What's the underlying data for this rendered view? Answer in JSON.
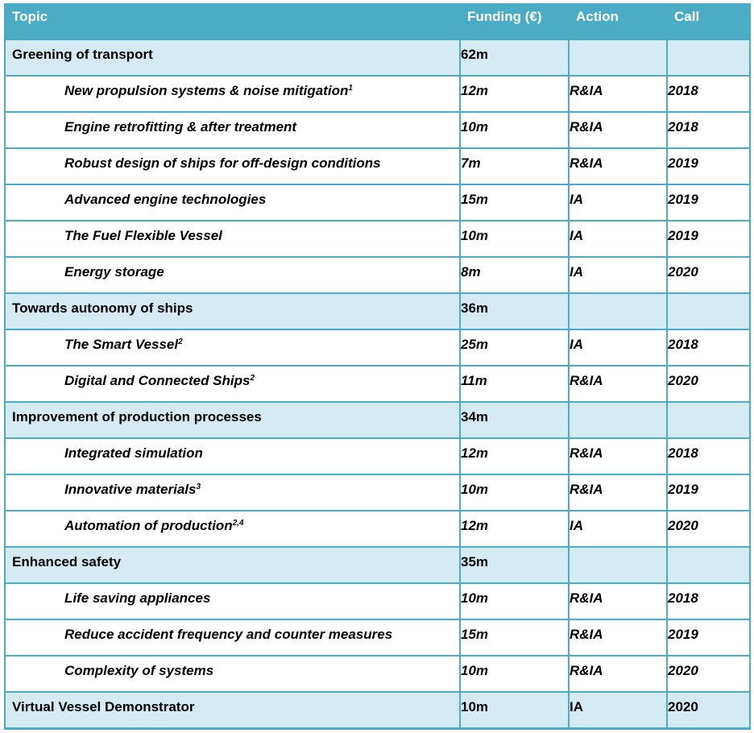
{
  "header": {
    "topic": "Topic",
    "funding": "Funding (€)",
    "action": "Action",
    "call": "Call"
  },
  "rows": [
    {
      "type": "category",
      "topic": "Greening of transport",
      "sup": "",
      "funding": "62m",
      "action": "",
      "call": ""
    },
    {
      "type": "sub",
      "topic": "New propulsion systems & noise mitigation",
      "sup": "1",
      "funding": "12m",
      "action": "R&IA",
      "call": "2018"
    },
    {
      "type": "sub",
      "topic": "Engine retrofitting & after treatment",
      "sup": "",
      "funding": "10m",
      "action": "R&IA",
      "call": "2018"
    },
    {
      "type": "sub",
      "topic": "Robust design of ships for off-design conditions",
      "sup": "",
      "funding": "7m",
      "action": "R&IA",
      "call": "2019"
    },
    {
      "type": "sub",
      "topic": "Advanced engine technologies",
      "sup": "",
      "funding": "15m",
      "action": "IA",
      "call": "2019"
    },
    {
      "type": "sub",
      "topic": "The Fuel Flexible Vessel",
      "sup": "",
      "funding": "10m",
      "action": "IA",
      "call": "2019"
    },
    {
      "type": "sub",
      "topic": "Energy storage",
      "sup": "",
      "funding": "8m",
      "action": "IA",
      "call": "2020"
    },
    {
      "type": "category",
      "topic": "Towards autonomy of ships",
      "sup": "",
      "funding": "36m",
      "action": "",
      "call": ""
    },
    {
      "type": "sub",
      "topic": "The Smart Vessel",
      "sup": "2",
      "funding": "25m",
      "action": "IA",
      "call": "2018"
    },
    {
      "type": "sub",
      "topic": "Digital and Connected Ships",
      "sup": "2",
      "funding": "11m",
      "action": "R&IA",
      "call": "2020"
    },
    {
      "type": "category",
      "topic": "Improvement of production processes",
      "sup": "",
      "funding": "34m",
      "action": "",
      "call": ""
    },
    {
      "type": "sub",
      "topic": "Integrated simulation",
      "sup": "",
      "funding": "12m",
      "action": "R&IA",
      "call": "2018"
    },
    {
      "type": "sub",
      "topic": "Innovative materials",
      "sup": "3",
      "funding": "10m",
      "action": "R&IA",
      "call": "2019"
    },
    {
      "type": "sub",
      "topic": "Automation of production",
      "sup": "2,4",
      "funding": "12m",
      "action": "IA",
      "call": "2020"
    },
    {
      "type": "category",
      "topic": "Enhanced safety",
      "sup": "",
      "funding": "35m",
      "action": "",
      "call": ""
    },
    {
      "type": "sub",
      "topic": "Life saving appliances",
      "sup": "",
      "funding": "10m",
      "action": "R&IA",
      "call": "2018"
    },
    {
      "type": "sub",
      "topic": "Reduce accident frequency and counter measures",
      "sup": "",
      "funding": "15m",
      "action": "R&IA",
      "call": "2019"
    },
    {
      "type": "sub",
      "topic": "Complexity of systems",
      "sup": "",
      "funding": "10m",
      "action": "R&IA",
      "call": "2020"
    },
    {
      "type": "category",
      "topic": "Virtual Vessel Demonstrator",
      "sup": "",
      "funding": "10m",
      "action": "IA",
      "call": "2020"
    }
  ],
  "colors": {
    "header_bg": "#4bacc6",
    "category_bg": "#d4ebf3",
    "border": "#4bacc6"
  }
}
